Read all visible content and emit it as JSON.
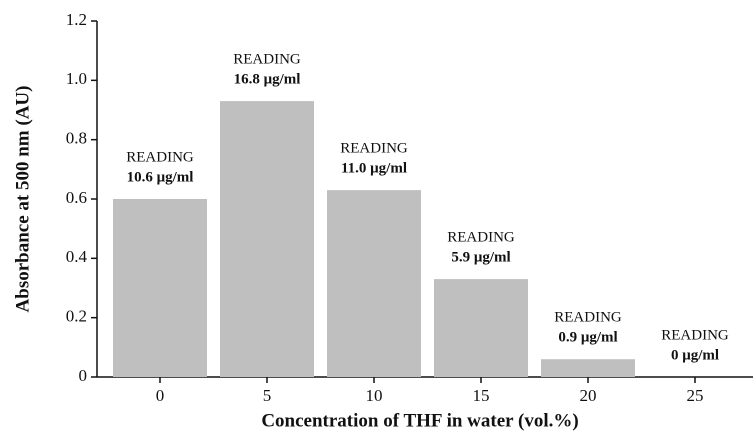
{
  "chart_data": {
    "type": "bar",
    "xlabel": "Concentration of THF in water (vol.%)",
    "ylabel": "Absorbance at 500 nm (AU)",
    "categories": [
      "0",
      "5",
      "10",
      "15",
      "20",
      "25"
    ],
    "values": [
      0.6,
      0.93,
      0.63,
      0.33,
      0.06,
      0
    ],
    "color": "#bfbfbf",
    "ylim": [
      0,
      1.2
    ],
    "yticks": [
      0,
      0.2,
      0.4,
      0.6,
      0.8,
      {
        "value": 1,
        "label": "1.0"
      },
      1.2
    ],
    "annotations": [
      {
        "label": "READING",
        "reading": "10.6 μg/ml"
      },
      {
        "label": "READING",
        "reading": "16.8 μg/ml"
      },
      {
        "label": "READING",
        "reading": "11.0 μg/ml"
      },
      {
        "label": "READING",
        "reading": "5.9 μg/ml"
      },
      {
        "label": "READING",
        "reading": "0.9 μg/ml"
      },
      {
        "label": "READING",
        "reading": "0 μg/ml"
      }
    ]
  }
}
